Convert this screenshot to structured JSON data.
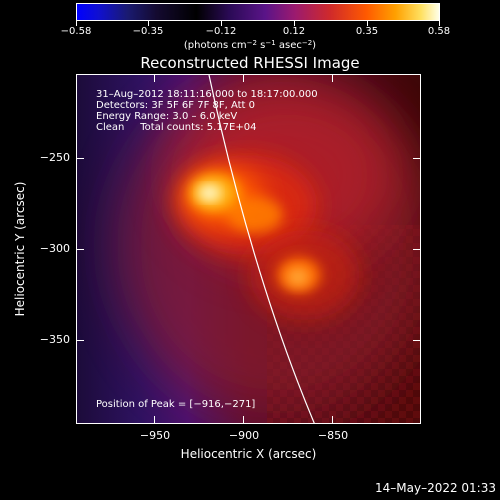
{
  "colorbar": {
    "ticks": [
      "−0.58",
      "−0.35",
      "−0.12",
      "0.12",
      "0.35",
      "0.58"
    ],
    "unit_parts": [
      "(photons cm",
      "−2",
      " s",
      "−1",
      " asec",
      "−2",
      ")"
    ]
  },
  "title": "Reconstructed RHESSI Image",
  "info": {
    "line1": "31–Aug–2012 18:11:16.000 to 18:17:00.000",
    "line2": "Detectors: 3F 5F 6F 7F 8F, Att 0",
    "line3": "Energy Range: 3.0 – 6.0 keV",
    "line4": "Clean     Total counts: 5.17E+04"
  },
  "peak_position": "Position of Peak = [−916,−271]",
  "x_axis": {
    "title": "Heliocentric X (arcsec)",
    "ticks": [
      "−950",
      "−900",
      "−850"
    ]
  },
  "y_axis": {
    "title": "Heliocentric Y (arcsec)",
    "ticks": [
      "−250",
      "−300",
      "−350"
    ]
  },
  "timestamp": "14–May–2022 01:33",
  "colors": {
    "background": "#000000",
    "foreground": "#ffffff",
    "limb_line": "#ffffff"
  }
}
